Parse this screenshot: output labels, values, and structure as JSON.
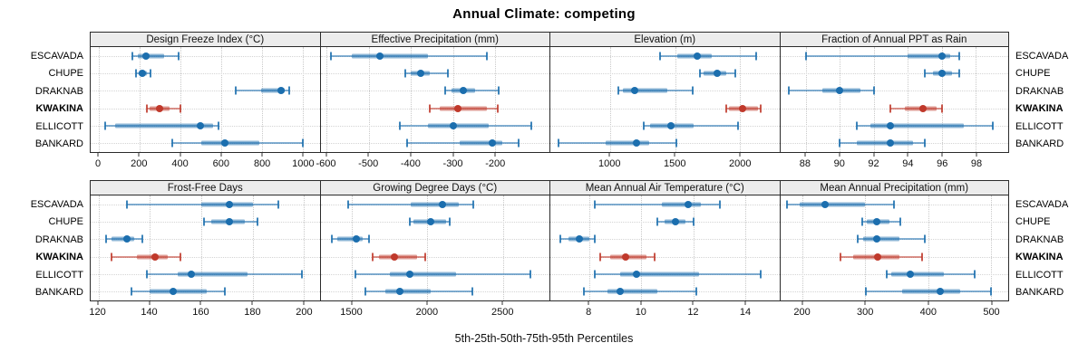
{
  "title": "Annual Climate: competing",
  "caption": "5th-25th-50th-75th-95th Percentiles",
  "sites": [
    "ESCAVADA",
    "CHUPE",
    "DRAKNAB",
    "KWAKINA",
    "ELLICOTT",
    "BANKARD"
  ],
  "highlight_site": "KWAKINA",
  "colors": {
    "series_blue": "#1b6eae",
    "series_red": "#c0392b",
    "panel_border": "#2b2b2b",
    "header_bg": "#ececec",
    "gridline": "#c9c9c9"
  },
  "chart_data": [
    {
      "type": "scatter",
      "mark": "median-dot-with-percentile-whiskers",
      "percentiles": [
        5,
        25,
        50,
        75,
        95
      ],
      "title": "Design Freeze Index (°C)",
      "xlim": [
        -40,
        1080
      ],
      "ticks": [
        0,
        200,
        400,
        600,
        800,
        1000
      ],
      "series": {
        "ESCAVADA": [
          165,
          190,
          230,
          320,
          390
        ],
        "CHUPE": [
          183,
          195,
          212,
          235,
          252
        ],
        "DRAKNAB": [
          670,
          795,
          890,
          910,
          930
        ],
        "KWAKINA": [
          235,
          250,
          295,
          345,
          400
        ],
        "ELLICOTT": [
          30,
          80,
          495,
          560,
          585
        ],
        "BANKARD": [
          360,
          500,
          615,
          785,
          1000
        ]
      }
    },
    {
      "type": "scatter",
      "mark": "median-dot-with-percentile-whiskers",
      "percentiles": [
        5,
        25,
        50,
        75,
        95
      ],
      "title": "Effective Precipitation (mm)",
      "xlim": [
        -615,
        -72
      ],
      "ticks": [
        -600,
        -500,
        -400,
        -300,
        -200
      ],
      "series": {
        "ESCAVADA": [
          -590,
          -540,
          -475,
          -360,
          -220
        ],
        "CHUPE": [
          -415,
          -400,
          -378,
          -355,
          -313
        ],
        "DRAKNAB": [
          -320,
          -305,
          -276,
          -249,
          -192
        ],
        "KWAKINA": [
          -356,
          -332,
          -289,
          -220,
          -195
        ],
        "ELLICOTT": [
          -426,
          -360,
          -299,
          -215,
          -115
        ],
        "BANKARD": [
          -410,
          -285,
          -207,
          -184,
          -145
        ]
      }
    },
    {
      "type": "scatter",
      "mark": "median-dot-with-percentile-whiskers",
      "percentiles": [
        5,
        25,
        50,
        75,
        95
      ],
      "title": "Elevation (m)",
      "xlim": [
        540,
        2300
      ],
      "ticks": [
        1000,
        1500,
        2000
      ],
      "series": {
        "ESCAVADA": [
          1380,
          1515,
          1670,
          1780,
          2120
        ],
        "CHUPE": [
          1690,
          1720,
          1820,
          1895,
          1960
        ],
        "DRAKNAB": [
          1065,
          1095,
          1190,
          1440,
          1635
        ],
        "KWAKINA": [
          1895,
          1910,
          2015,
          2135,
          2160
        ],
        "ELLICOTT": [
          1260,
          1305,
          1465,
          1640,
          1985
        ],
        "BANKARD": [
          605,
          965,
          1205,
          1300,
          1510
        ]
      }
    },
    {
      "type": "scatter",
      "mark": "median-dot-with-percentile-whiskers",
      "percentiles": [
        5,
        25,
        50,
        75,
        95
      ],
      "title": "Fraction of Annual PPT as Rain",
      "xlim": [
        86.5,
        99.9
      ],
      "ticks": [
        88,
        90,
        92,
        94,
        96,
        98
      ],
      "series": {
        "ESCAVADA": [
          88,
          94,
          96,
          96.5,
          97
        ],
        "CHUPE": [
          95,
          95.5,
          96,
          96.6,
          97
        ],
        "DRAKNAB": [
          87,
          89,
          90,
          91.2,
          92
        ],
        "KWAKINA": [
          93,
          93.8,
          94.9,
          95.7,
          96
        ],
        "ELLICOTT": [
          91,
          91.8,
          93,
          97.3,
          99
        ],
        "BANKARD": [
          90,
          91,
          93,
          94.3,
          95
        ]
      }
    },
    {
      "type": "scatter",
      "mark": "median-dot-with-percentile-whiskers",
      "percentiles": [
        5,
        25,
        50,
        75,
        95
      ],
      "title": "Frost-Free Days",
      "xlim": [
        117,
        206
      ],
      "ticks": [
        120,
        140,
        160,
        180,
        200
      ],
      "series": {
        "ESCAVADA": [
          131,
          160,
          171,
          180,
          190
        ],
        "CHUPE": [
          161,
          164,
          171,
          177,
          182
        ],
        "DRAKNAB": [
          123,
          125,
          131,
          134,
          137
        ],
        "KWAKINA": [
          125,
          135,
          142,
          147,
          152
        ],
        "ELLICOTT": [
          139,
          151,
          156,
          178,
          199
        ],
        "BANKARD": [
          133,
          140,
          149,
          162,
          169
        ]
      }
    },
    {
      "type": "scatter",
      "mark": "median-dot-with-percentile-whiskers",
      "percentiles": [
        5,
        25,
        50,
        75,
        95
      ],
      "title": "Growing Degree Days (°C)",
      "xlim": [
        1290,
        2810
      ],
      "ticks": [
        1500,
        2000,
        2500
      ],
      "series": {
        "ESCAVADA": [
          1475,
          1890,
          2100,
          2210,
          2305
        ],
        "CHUPE": [
          1880,
          1910,
          2020,
          2125,
          2150
        ],
        "DRAKNAB": [
          1365,
          1400,
          1530,
          1570,
          1615
        ],
        "KWAKINA": [
          1635,
          1680,
          1780,
          1930,
          1985
        ],
        "ELLICOTT": [
          1520,
          1750,
          1885,
          2190,
          2685
        ],
        "BANKARD": [
          1585,
          1720,
          1815,
          2020,
          2300
        ]
      }
    },
    {
      "type": "scatter",
      "mark": "median-dot-with-percentile-whiskers",
      "percentiles": [
        5,
        25,
        50,
        75,
        95
      ],
      "title": "Mean Annual Air Temperature (°C)",
      "xlim": [
        6.5,
        15.3
      ],
      "ticks": [
        8,
        10,
        12,
        14
      ],
      "series": {
        "ESCAVADA": [
          8.2,
          10.8,
          11.8,
          12.3,
          13.0
        ],
        "CHUPE": [
          10.6,
          10.9,
          11.3,
          11.7,
          12.0
        ],
        "DRAKNAB": [
          6.9,
          7.2,
          7.6,
          8.0,
          8.2
        ],
        "KWAKINA": [
          8.4,
          8.8,
          9.4,
          10.2,
          10.5
        ],
        "ELLICOTT": [
          8.2,
          9.2,
          9.8,
          12.2,
          14.6
        ],
        "BANKARD": [
          7.8,
          8.7,
          9.2,
          10.6,
          12.1
        ]
      }
    },
    {
      "type": "scatter",
      "mark": "median-dot-with-percentile-whiskers",
      "percentiles": [
        5,
        25,
        50,
        75,
        95
      ],
      "title": "Mean Annual Precipitation (mm)",
      "xlim": [
        164,
        528
      ],
      "ticks": [
        200,
        300,
        400,
        500
      ],
      "series": {
        "ESCAVADA": [
          175,
          195,
          235,
          300,
          345
        ],
        "CHUPE": [
          295,
          302,
          318,
          338,
          356
        ],
        "DRAKNAB": [
          288,
          297,
          318,
          355,
          395
        ],
        "KWAKINA": [
          260,
          280,
          320,
          355,
          390
        ],
        "ELLICOTT": [
          334,
          341,
          371,
          425,
          474
        ],
        "BANKARD": [
          301,
          358,
          420,
          452,
          500
        ]
      }
    }
  ]
}
